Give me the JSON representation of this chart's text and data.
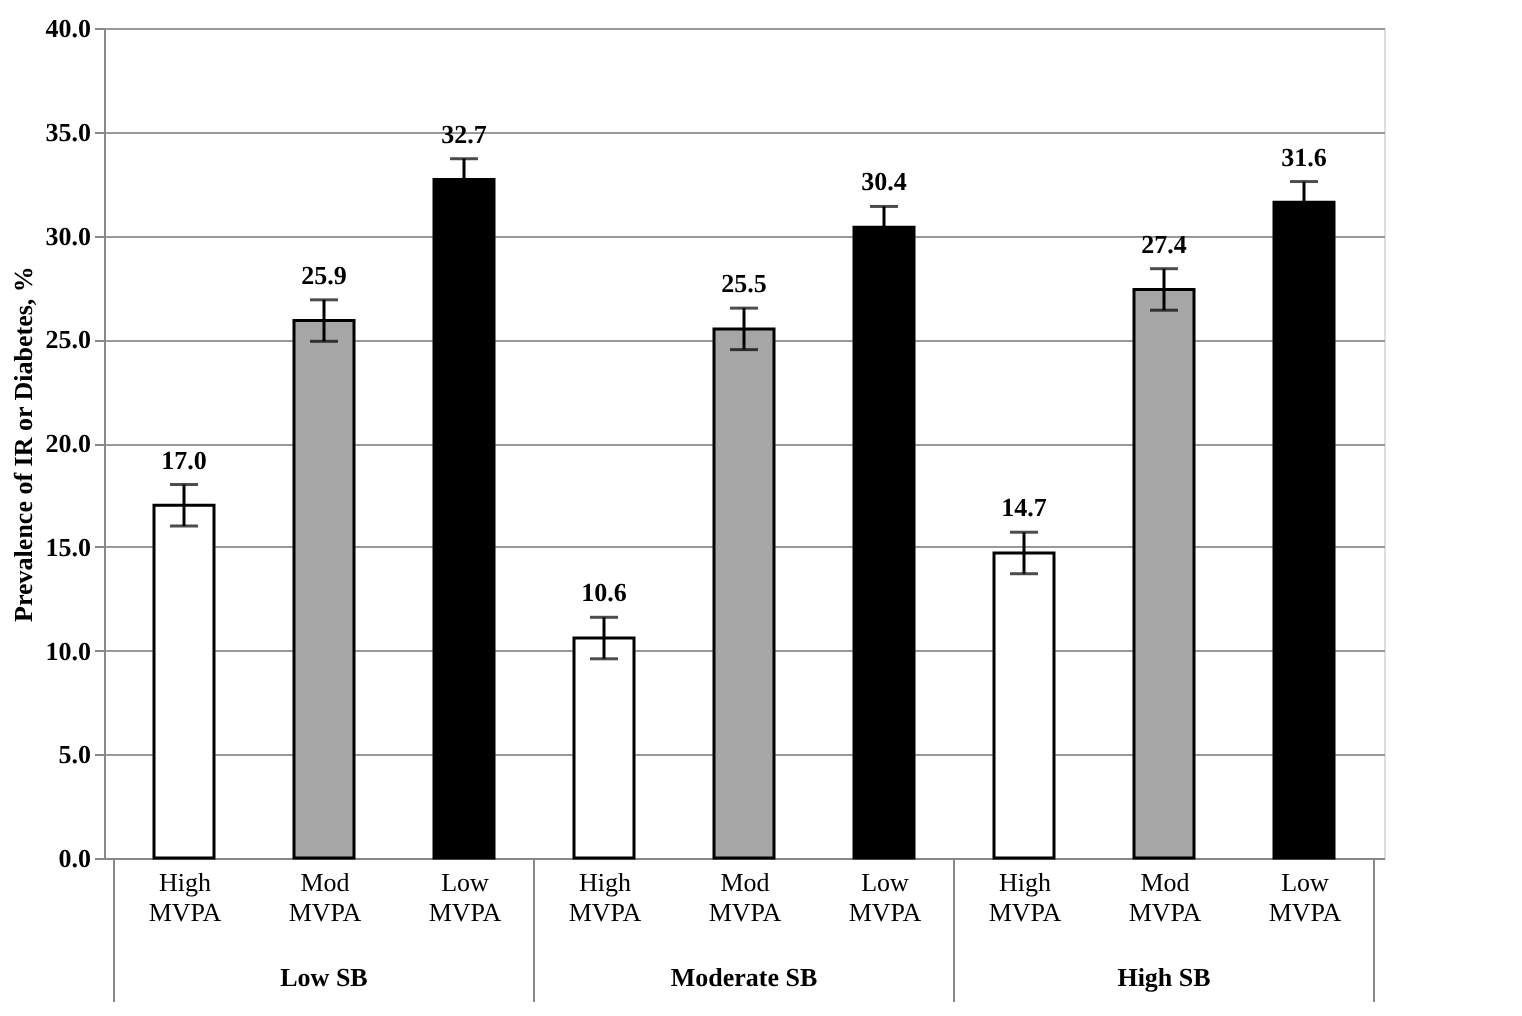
{
  "chart_data": {
    "type": "bar",
    "ylabel": "Prevalence of IR or Diabetes, %",
    "categories": [
      "High MVPA",
      "Mod MVPA",
      "Low MVPA",
      "High MVPA",
      "Mod MVPA",
      "Low MVPA",
      "High MVPA",
      "Mod MVPA",
      "Low MVPA"
    ],
    "values": [
      17.0,
      25.9,
      32.7,
      10.6,
      25.5,
      30.4,
      14.7,
      27.4,
      31.6
    ],
    "errors": [
      1.0,
      1.0,
      1.0,
      1.0,
      1.0,
      1.0,
      1.0,
      1.0,
      1.0
    ],
    "value_labels": [
      "17.0",
      "25.9",
      "32.7",
      "10.6",
      "25.5",
      "30.4",
      "14.7",
      "27.4",
      "31.6"
    ],
    "colors": [
      "#ffffff",
      "#a6a6a6",
      "#000000",
      "#ffffff",
      "#a6a6a6",
      "#000000",
      "#ffffff",
      "#a6a6a6",
      "#000000"
    ],
    "annotations": [
      "Low SB",
      "Moderate SB",
      "High SB"
    ],
    "ylim": [
      0,
      40
    ],
    "yticks": [
      {
        "value": 0,
        "label": "0.0"
      },
      {
        "value": 5,
        "label": "5.0"
      },
      {
        "value": 10,
        "label": "10.0"
      },
      {
        "value": 15,
        "label": "15.0"
      },
      {
        "value": 20,
        "label": "20.0"
      },
      {
        "value": 25,
        "label": "25.0"
      },
      {
        "value": 30,
        "label": "30.0"
      },
      {
        "value": 35,
        "label": "35.0"
      },
      {
        "value": 40,
        "label": "40.0"
      }
    ],
    "grid": "y"
  }
}
